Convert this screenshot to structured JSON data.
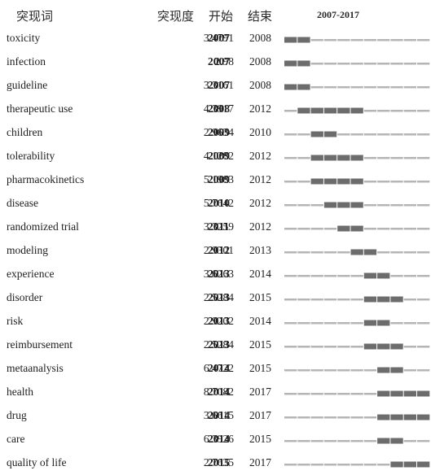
{
  "headers": {
    "keyword": "突现词",
    "strength": "突现度",
    "begin": "开始",
    "end": "结束",
    "range": "2007-2017"
  },
  "colors": {
    "burst": "#6c6c6c",
    "baseline": "#b5b5b5",
    "text": "#1e1e1e"
  },
  "chart_data": {
    "type": "table",
    "title": "",
    "year_start": 2007,
    "year_end": 2017,
    "columns": [
      "突现词",
      "突现度",
      "开始",
      "结束",
      "2007-2017"
    ],
    "rows": [
      {
        "keyword": "toxicity",
        "strength": "3.4791",
        "begin": "2007",
        "end": "2008"
      },
      {
        "keyword": "infection",
        "strength": "2.98",
        "begin": "2007",
        "end": "2008"
      },
      {
        "keyword": "guideline",
        "strength": "3.3161",
        "begin": "2007",
        "end": "2008"
      },
      {
        "keyword": "therapeutic use",
        "strength": "4.3917",
        "begin": "2008",
        "end": "2012"
      },
      {
        "keyword": "children",
        "strength": "2.9634",
        "begin": "2009",
        "end": "2010"
      },
      {
        "keyword": "tolerability",
        "strength": "4.1282",
        "begin": "2009",
        "end": "2012"
      },
      {
        "keyword": "pharmacokinetics",
        "strength": "5.1983",
        "begin": "2009",
        "end": "2012"
      },
      {
        "keyword": "disease",
        "strength": "5.7642",
        "begin": "2010",
        "end": "2012"
      },
      {
        "keyword": "randomized trial",
        "strength": "3.3259",
        "begin": "2011",
        "end": "2012"
      },
      {
        "keyword": "modeling",
        "strength": "2.9301",
        "begin": "2012",
        "end": "2013"
      },
      {
        "keyword": "experience",
        "strength": "3.6263",
        "begin": "2013",
        "end": "2014"
      },
      {
        "keyword": "disorder",
        "strength": "2.5284",
        "begin": "2013",
        "end": "2015"
      },
      {
        "keyword": "risk",
        "strength": "2.9202",
        "begin": "2013",
        "end": "2014"
      },
      {
        "keyword": "reimbursement",
        "strength": "2.5284",
        "begin": "2013",
        "end": "2015"
      },
      {
        "keyword": "metaanalysis",
        "strength": "6.4722",
        "begin": "2014",
        "end": "2015"
      },
      {
        "keyword": "health",
        "strength": "8.7082",
        "begin": "2014",
        "end": "2017"
      },
      {
        "keyword": "drug",
        "strength": "3.6615",
        "begin": "2014",
        "end": "2017"
      },
      {
        "keyword": "care",
        "strength": "6.3926",
        "begin": "2014",
        "end": "2015"
      },
      {
        "keyword": "quality of life",
        "strength": "2.7635",
        "begin": "2015",
        "end": "2017"
      }
    ]
  }
}
